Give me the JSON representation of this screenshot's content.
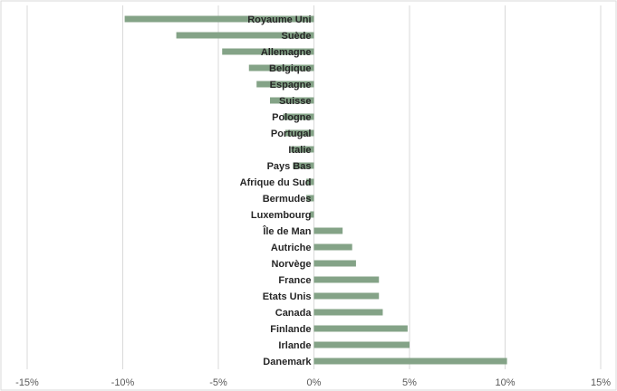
{
  "chart_data": {
    "type": "bar",
    "orientation": "horizontal",
    "title": "",
    "xlabel": "",
    "ylabel": "",
    "xlim": [
      -15,
      15
    ],
    "x_ticks": [
      -15,
      -10,
      -5,
      0,
      5,
      10,
      15
    ],
    "x_tick_labels": [
      "-15%",
      "-10%",
      "-5%",
      "0%",
      "5%",
      "10%",
      "15%"
    ],
    "grid": "vertical",
    "legend": "none",
    "bar_color": "#84a387",
    "categories": [
      "Royaume Uni",
      "Suède",
      "Allemagne",
      "Belgique",
      "Espagne",
      "Suisse",
      "Pologne",
      "Portugal",
      "Italie",
      "Pays Bas",
      "Afrique du Sud",
      "Bermudes",
      "Luxembourg",
      "Île de Man",
      "Autriche",
      "Norvège",
      "France",
      "Etats Unis",
      "Canada",
      "Finlande",
      "Irlande",
      "Danemark"
    ],
    "values": [
      -9.9,
      -7.2,
      -4.8,
      -3.4,
      -3.0,
      -2.3,
      -1.6,
      -1.5,
      -1.2,
      -1.1,
      -0.4,
      -0.4,
      -0.2,
      1.5,
      2.0,
      2.2,
      3.4,
      3.4,
      3.6,
      4.9,
      5.0,
      10.1
    ]
  }
}
